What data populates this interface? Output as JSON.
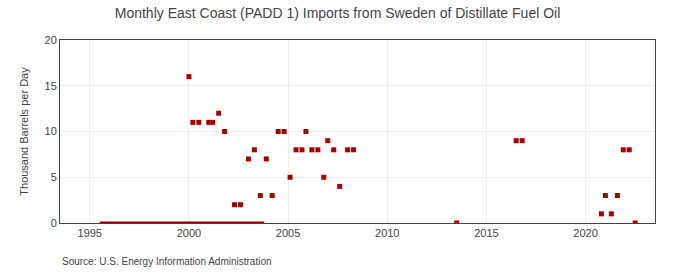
{
  "chart_data": {
    "type": "scatter",
    "title": "Monthly East Coast (PADD 1) Imports from Sweden of Distillate Fuel Oil",
    "ylabel": "Thousand Barrels per Day",
    "source": "Source: U.S. Energy Information Administration",
    "xlim": [
      1993.5,
      2023.5
    ],
    "ylim": [
      0,
      20
    ],
    "xticks": [
      1995,
      2000,
      2005,
      2010,
      2015,
      2020
    ],
    "yticks": [
      0,
      5,
      10,
      15,
      20
    ],
    "grid": true,
    "series": [
      {
        "type": "line",
        "color": "#880000",
        "x": [
          1995.5,
          2003.8
        ],
        "values": [
          0,
          0
        ]
      },
      {
        "type": "scatter",
        "color": "#aa0000",
        "marker": "square",
        "x": [
          2000.0,
          2000.2,
          2000.5,
          2001.0,
          2001.2,
          2001.5,
          2001.8,
          2002.3,
          2002.6,
          2003.0,
          2003.3,
          2003.6,
          2003.9,
          2004.2,
          2004.5,
          2004.8,
          2005.1,
          2005.4,
          2005.7,
          2005.9,
          2006.2,
          2006.5,
          2006.8,
          2007.0,
          2007.3,
          2007.6,
          2008.0,
          2008.3,
          2013.5,
          2016.5,
          2016.8,
          2020.8,
          2021.0,
          2021.3,
          2021.6,
          2021.9,
          2022.2,
          2022.5
        ],
        "values": [
          16,
          11,
          11,
          11,
          11,
          12,
          10,
          2,
          2,
          7,
          8,
          3,
          7,
          3,
          10,
          10,
          5,
          8,
          8,
          10,
          8,
          8,
          5,
          9,
          8,
          4,
          8,
          8,
          0,
          9,
          9,
          1,
          3,
          1,
          3,
          8,
          8,
          0
        ]
      }
    ]
  }
}
